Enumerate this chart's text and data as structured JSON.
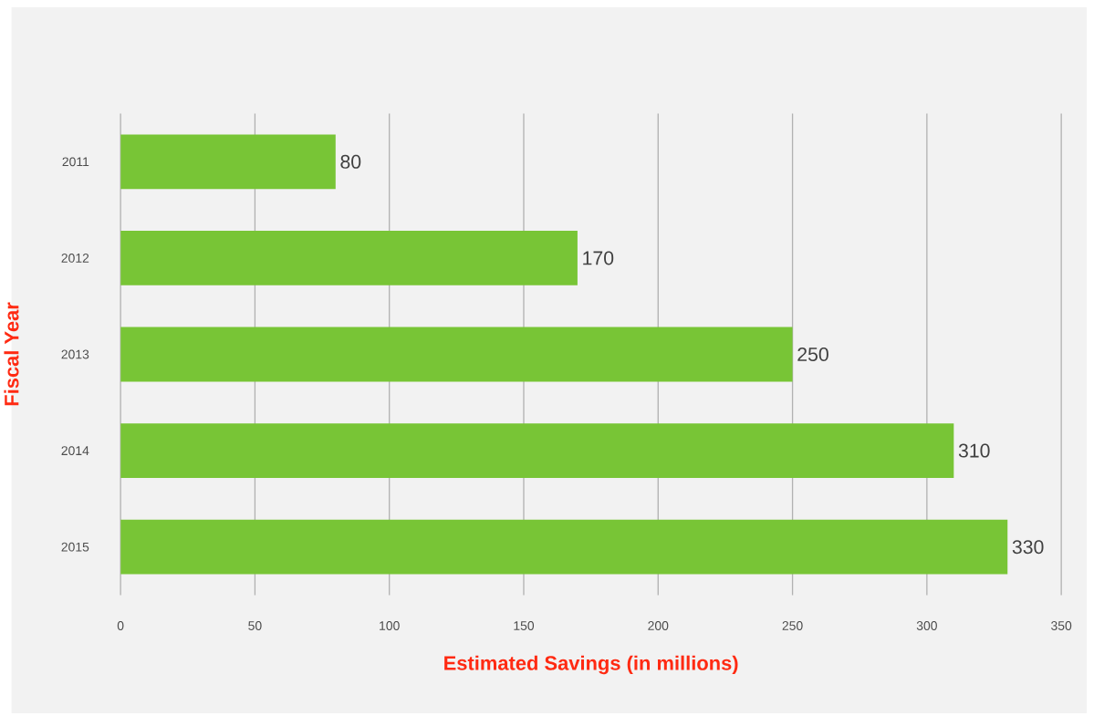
{
  "chart_data": {
    "type": "bar",
    "orientation": "horizontal",
    "xlabel": "Estimated Savings (in millions)",
    "ylabel": "Fiscal Year",
    "categories": [
      "2011",
      "2012",
      "2013",
      "2014",
      "2015"
    ],
    "values": [
      80,
      170,
      250,
      310,
      330
    ],
    "color": "#78c536",
    "xlim": [
      0,
      350
    ],
    "xticks": [
      0,
      50,
      100,
      150,
      200,
      250,
      300,
      350
    ],
    "grid": "x",
    "data_labels": true
  }
}
